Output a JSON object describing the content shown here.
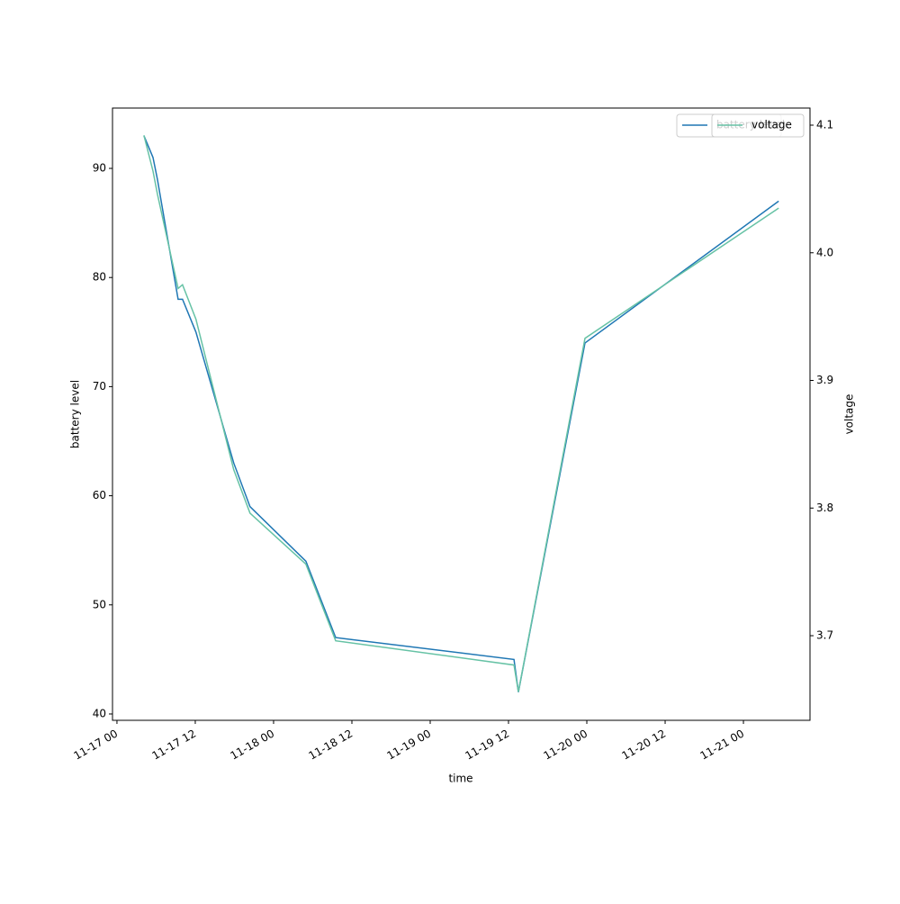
{
  "chart_data": {
    "type": "line",
    "xlabel": "time",
    "ylabel": "battery level",
    "y2label": "voltage",
    "x": [
      "11-17 04:08",
      "11-17 05:31",
      "11-17 06:12",
      "11-17 09:22",
      "11-17 10:03",
      "11-17 12:06",
      "11-17 17:54",
      "11-17 20:23",
      "11-18 04:57",
      "11-18 09:31",
      "11-19 12:50",
      "11-19 13:31",
      "11-19 23:43",
      "11-21 05:24"
    ],
    "series": [
      {
        "name": "battery level",
        "color": "#1f77b4",
        "values": [
          93,
          91,
          89,
          78,
          78,
          75,
          63,
          59,
          54,
          47,
          45,
          42,
          74,
          87
        ]
      },
      {
        "name": "voltage",
        "color": "#66c2a5",
        "axis": "y2",
        "values": [
          4.092,
          4.064,
          4.046,
          3.972,
          3.975,
          3.948,
          3.83,
          3.796,
          3.756,
          3.696,
          3.677,
          3.656,
          3.933,
          4.035
        ]
      }
    ],
    "xlim": [
      "11-16 23:19",
      "11-21 10:12"
    ],
    "xticks": [
      "11-17 00",
      "11-17 12",
      "11-18 00",
      "11-18 12",
      "11-19 00",
      "11-19 12",
      "11-20 00",
      "11-20 12",
      "11-21 00"
    ],
    "ylim": [
      39.42,
      95.53
    ],
    "yticks": [
      40,
      50,
      60,
      70,
      80,
      90
    ],
    "y2lim": [
      3.6337,
      4.1134
    ],
    "y2ticks": [
      3.7,
      3.8,
      3.9,
      {
        "value": 4,
        "label": "4.0"
      },
      4.1
    ],
    "legend": "upper right"
  }
}
